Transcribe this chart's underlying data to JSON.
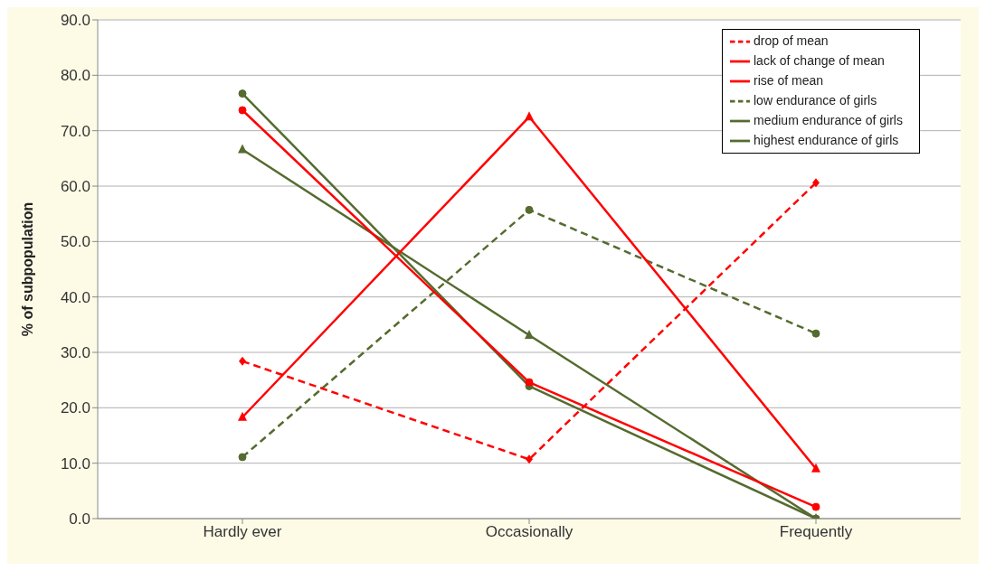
{
  "chart_data": {
    "type": "line",
    "ylabel": "% of subpopulation",
    "categories": [
      "Hardly ever",
      "Occasionally",
      "Frequently"
    ],
    "series": [
      {
        "name": "drop of mean",
        "color": "#ff0000",
        "values": [
          28.4,
          10.7,
          60.6
        ],
        "marker": "diamond",
        "line_style": "dashed"
      },
      {
        "name": "lack of change of mean",
        "color": "#ff0000",
        "values": [
          73.7,
          24.6,
          2.1
        ],
        "marker": "circle",
        "line_style": "solid"
      },
      {
        "name": "rise of mean",
        "color": "#ff0000",
        "values": [
          18.3,
          72.5,
          9.0
        ],
        "marker": "triangle",
        "line_style": "solid"
      },
      {
        "name": "low endurance of girls",
        "color": "#556b2f",
        "values": [
          11.1,
          55.7,
          33.4
        ],
        "marker": "circle",
        "line_style": "dashed"
      },
      {
        "name": "medium endurance of girls",
        "color": "#556b2f",
        "values": [
          76.7,
          23.9,
          0
        ],
        "marker": "circle",
        "line_style": "solid"
      },
      {
        "name": "highest endurance of girls",
        "color": "#556b2f",
        "values": [
          66.6,
          33.1,
          0
        ],
        "marker": "triangle",
        "line_style": "solid"
      }
    ],
    "ylim": [
      0,
      90
    ],
    "yticks": [
      {
        "value": 0,
        "label": "0.0"
      },
      {
        "value": 10,
        "label": "10.0"
      },
      {
        "value": 20,
        "label": "20.0"
      },
      {
        "value": 30,
        "label": "30.0"
      },
      {
        "value": 40,
        "label": "40.0"
      },
      {
        "value": 50,
        "label": "50.0"
      },
      {
        "value": 60,
        "label": "60.0"
      },
      {
        "value": 70,
        "label": "70.0"
      },
      {
        "value": 80,
        "label": "80.0"
      },
      {
        "value": 90,
        "label": "90.0"
      }
    ],
    "grid": "y",
    "legend": "top right"
  }
}
